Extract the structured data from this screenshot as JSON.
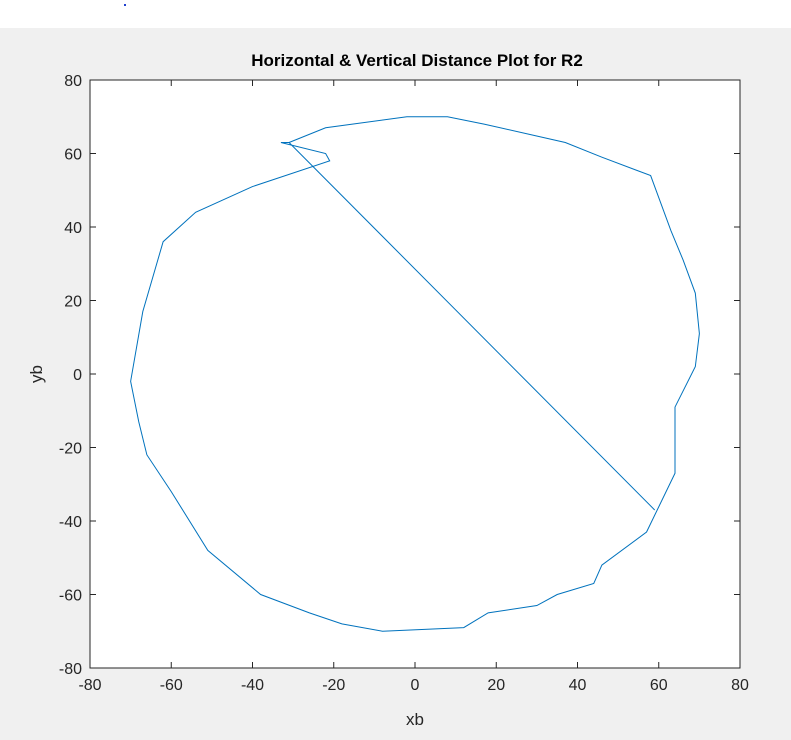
{
  "chart_data": {
    "type": "line",
    "title": "Horizontal & Vertical Distance Plot for R2",
    "xlabel": "xb",
    "ylabel": "yb",
    "xlim": [
      -80,
      80
    ],
    "ylim": [
      -80,
      80
    ],
    "xticks": [
      -80,
      -60,
      -40,
      -20,
      0,
      20,
      40,
      60,
      80
    ],
    "yticks": [
      -80,
      -60,
      -40,
      -20,
      0,
      20,
      40,
      60,
      80
    ],
    "xtick_labels": [
      "-80",
      "-60",
      "-40",
      "-20",
      "0",
      "20",
      "40",
      "60",
      "80"
    ],
    "ytick_labels": [
      "-80",
      "-60",
      "-40",
      "-20",
      "0",
      "20",
      "40",
      "60",
      "80"
    ],
    "grid": false,
    "line_color": "#0072bd",
    "series": [
      {
        "x": [
          -31,
          -22,
          -2,
          8,
          17,
          29,
          37,
          46,
          58,
          63,
          66,
          69,
          70,
          69,
          64,
          64,
          57,
          46,
          44,
          35,
          30,
          18,
          12,
          -8,
          -18,
          -26,
          -38,
          -51,
          -60,
          -66,
          -68,
          -70,
          -67,
          -62,
          -54,
          -40,
          -21,
          -22,
          -33,
          -31,
          59
        ],
        "y": [
          63,
          67,
          70,
          70,
          68,
          65,
          63,
          59,
          54,
          39,
          31,
          22,
          11,
          2,
          -9,
          -27,
          -43,
          -52,
          -57,
          -60,
          -63,
          -65,
          -69,
          -70,
          -68,
          -65,
          -60,
          -48,
          -32,
          -22,
          -13,
          -2,
          17,
          36,
          44,
          51,
          58,
          60,
          63,
          63,
          -37
        ]
      }
    ]
  }
}
